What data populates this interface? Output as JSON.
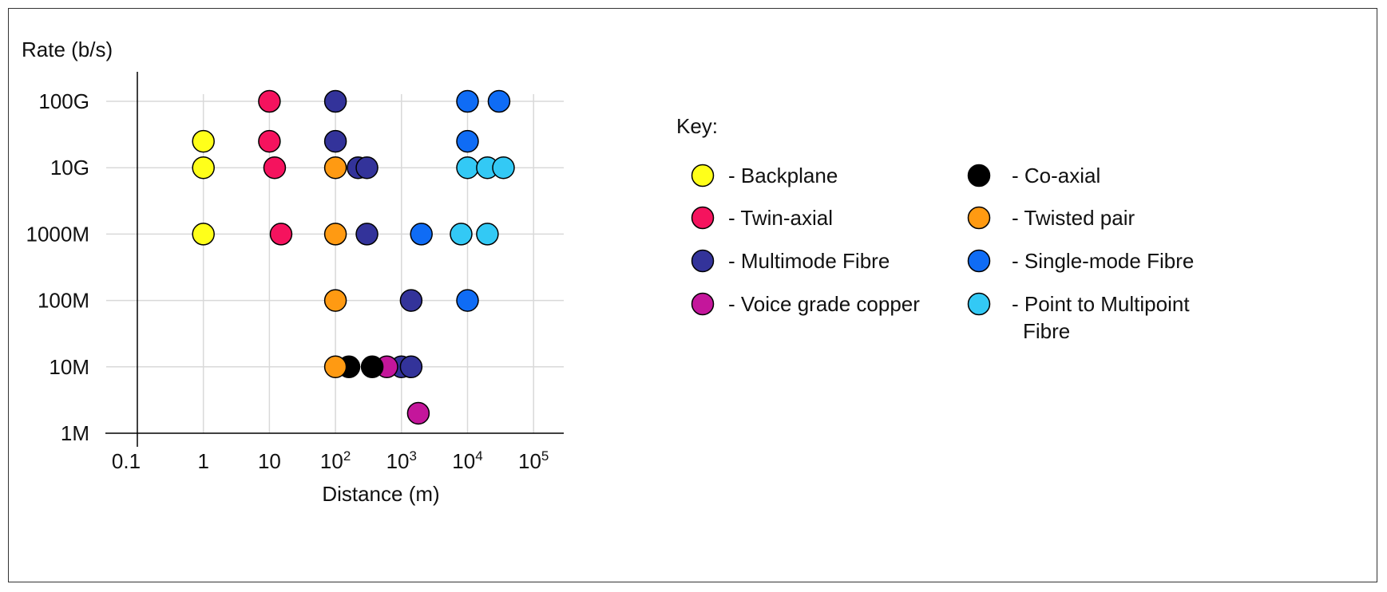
{
  "chart_data": {
    "type": "scatter",
    "title": "",
    "ylabel": "Rate (b/s)",
    "xlabel": "Distance (m)",
    "x_scale": "log10",
    "y_scale": "log10",
    "xlim": [
      0.1,
      100000
    ],
    "ylim": [
      1000000,
      100000000000
    ],
    "grid": true,
    "x_ticks": [
      {
        "value": 0.1,
        "base": "0.1",
        "exp": ""
      },
      {
        "value": 1,
        "base": "1",
        "exp": ""
      },
      {
        "value": 10,
        "base": "10",
        "exp": ""
      },
      {
        "value": 100,
        "base": "10",
        "exp": "2"
      },
      {
        "value": 1000,
        "base": "10",
        "exp": "3"
      },
      {
        "value": 10000,
        "base": "10",
        "exp": "4"
      },
      {
        "value": 100000,
        "base": "10",
        "exp": "5"
      }
    ],
    "y_ticks": [
      {
        "value": 1000000,
        "label": "1M"
      },
      {
        "value": 10000000,
        "label": "10M"
      },
      {
        "value": 100000000,
        "label": "100M"
      },
      {
        "value": 1000000000,
        "label": "1000M"
      },
      {
        "value": 10000000000,
        "label": "10G"
      },
      {
        "value": 100000000000,
        "label": "100G"
      }
    ],
    "legend_title": "Key:",
    "legend_position": "right",
    "series": [
      {
        "name": "- Backplane",
        "color": "#ffff1a",
        "points": [
          [
            1,
            1000000000
          ],
          [
            1,
            10000000000
          ],
          [
            1,
            25000000000
          ]
        ]
      },
      {
        "name": "- Twin-axial",
        "color": "#f5135e",
        "points": [
          [
            10,
            100000000000
          ],
          [
            10,
            25000000000
          ],
          [
            12,
            10000000000
          ],
          [
            15,
            1000000000
          ]
        ]
      },
      {
        "name": "- Multimode Fibre",
        "color": "#33339a",
        "points": [
          [
            100,
            100000000000
          ],
          [
            100,
            25000000000
          ],
          [
            220,
            10000000000
          ],
          [
            300,
            10000000000
          ],
          [
            300,
            1000000000
          ],
          [
            1400,
            100000000
          ],
          [
            1000,
            10000000
          ],
          [
            1400,
            10000000
          ]
        ]
      },
      {
        "name": "- Voice grade copper",
        "color": "#c4169b",
        "points": [
          [
            600,
            10000000
          ],
          [
            1800,
            2000000
          ]
        ]
      },
      {
        "name": "- Co-axial",
        "color": "#000000",
        "points": [
          [
            160,
            10000000
          ],
          [
            360,
            10000000
          ]
        ]
      },
      {
        "name": "- Twisted pair",
        "color": "#ff9a12",
        "points": [
          [
            100,
            10000000000
          ],
          [
            100,
            1000000000
          ],
          [
            100,
            100000000
          ],
          [
            100,
            10000000
          ]
        ]
      },
      {
        "name": "- Single-mode Fibre",
        "color": "#0f6cf5",
        "points": [
          [
            10000,
            100000000000
          ],
          [
            30000,
            100000000000
          ],
          [
            10000,
            25000000000
          ],
          [
            2000,
            1000000000
          ],
          [
            10000,
            100000000
          ]
        ]
      },
      {
        "name": "- Point to Multipoint Fibre",
        "color": "#33c9f5",
        "points": [
          [
            10000,
            10000000000
          ],
          [
            20000,
            10000000000
          ],
          [
            35000,
            10000000000
          ],
          [
            8000,
            1000000000
          ],
          [
            20000,
            1000000000
          ]
        ]
      }
    ]
  }
}
